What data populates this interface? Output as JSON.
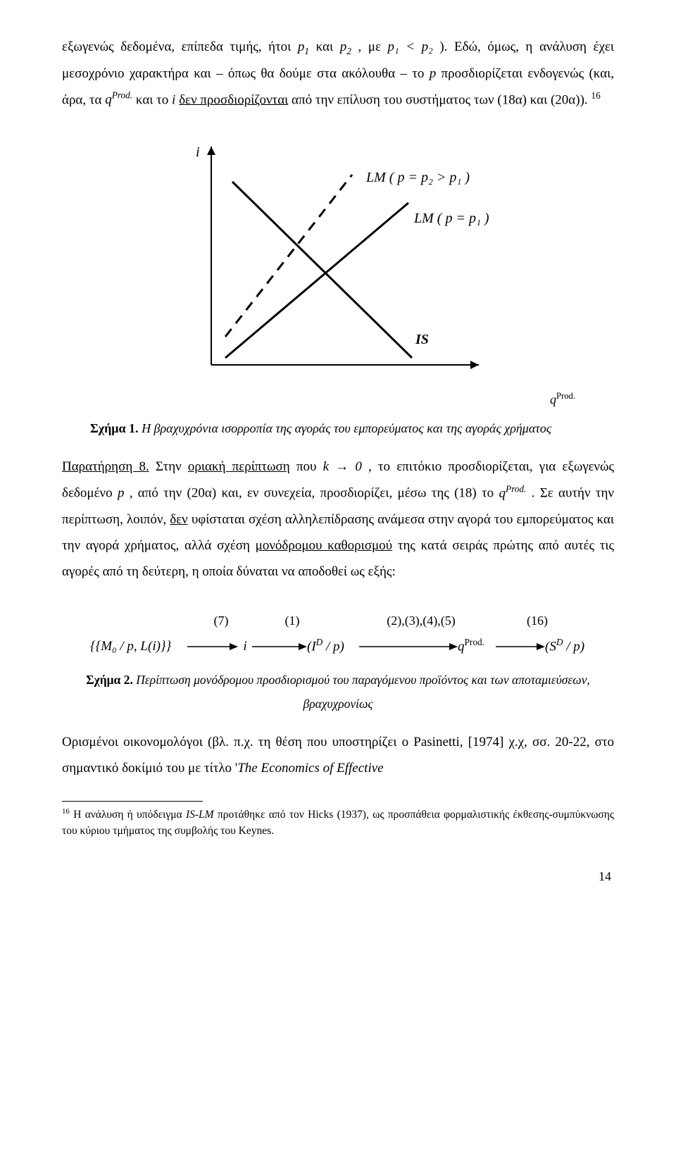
{
  "para1": {
    "t1": "εξωγενώς δεδομένα, επίπεδα τιμής, ήτοι ",
    "p1": "p",
    "p1sub": "1",
    "t2": " και ",
    "p2": "p",
    "p2sub": "2",
    "t3": ", με ",
    "rel": "p₁ < p₂",
    "t4": ").  Εδώ, όμως, η ανάλυση έχει μεσοχρόνιο χαρακτήρα και – όπως θα δούμε στα ακόλουθα –  το ",
    "pvar": "p",
    "t5": " προσδιορίζεται ενδογενώς (και, άρα, τα ",
    "qprod": "q",
    "qprodSup": "Prod.",
    "t6": " και το ",
    "ivar": "i",
    "t7": " δεν προσδιορίζονται",
    "t8": " από την επίλυση του συστήματος των (18α) και (20α)).",
    "fnref": "16"
  },
  "chart": {
    "bg": "#ffffff",
    "axis_color": "#000000",
    "line_color": "#000000",
    "dash_pattern": "14,10",
    "solid_width": 3,
    "dash_width": 3,
    "arrow_head": 10,
    "yaxis_label": "i",
    "lm2_label": "LM ( p = p₂ > p₁ )",
    "lm1_label": "LM ( p = p₁ )",
    "is_label": "IS",
    "xaxis_label_q": "q",
    "xaxis_label_sup": "Prod.",
    "viewbox_w": 520,
    "viewbox_h": 380,
    "font_size": 20,
    "font_style": "italic"
  },
  "fig1": {
    "label": "Σχήμα 1.",
    "text": " Η βραχυχρόνια ισορροπία της αγοράς του εμπορεύματος και της αγοράς χρήματος"
  },
  "para2": {
    "head": "Παρατήρηση 8.",
    "t1": " Στην ",
    "u1": "οριακή περίπτωση",
    "t2": " που ",
    "kto0": "k → 0",
    "t3": ", το επιτόκιο προσδιορίζεται, για εξωγενώς δεδομένο ",
    "p": "p",
    "t4": ", από την (20α) και, εν συνεχεία, προσδιορίζει, μέσω της (18) το ",
    "q": "q",
    "qsup": "Prod.",
    "t5": ". Σε αυτήν την περίπτωση, λοιπόν, ",
    "u2": "δεν",
    "t6": " υφίσταται σχέση αλληλεπίδρασης ανάμεσα στην αγορά του εμπορεύματος και την αγορά χρήματος, αλλά σχέση ",
    "u3": "μονόδρομου καθορισμού",
    "t7": " της κατά σειράς πρώτης από αυτές τις αγορές από τη δεύτερη, η οποία δύναται να αποδοθεί ως εξής:"
  },
  "flow": {
    "l1": "(7)",
    "l2": "(1)",
    "l3": "(2),(3),(4),(5)",
    "l4": "(16)",
    "n1": "{M₀ / p, L(i)}",
    "n2": "i",
    "n3": "(I",
    "n3sup": "D",
    "n3b": " / p)",
    "n4q": "q",
    "n4sup": "Prod.",
    "n5a": "(S",
    "n5sup": "D",
    "n5b": " / p)",
    "arrow_color": "#000000"
  },
  "fig2": {
    "label": "Σχήμα 2.",
    "text": " Περίπτωση μονόδρομου προσδιορισμού του παραγόμενου προϊόντος και των αποταμιεύσεων, βραχυχρονίως"
  },
  "para3": {
    "t1": "Ορισμένοι οικονομολόγοι (βλ. π.χ. τη θέση που υποστηρίζει ο Pasinetti, [1974] χ.χ, σσ. 20-22, στο σημαντικό δοκίμιό του με τίτλο '",
    "title": "The Economics of Effective"
  },
  "footnote": {
    "num": "16",
    "t1": " Η ανάλυση ή υπόδειγμα ",
    "islm": "IS-LM",
    "t2": " προτάθηκε από τον Hicks (1937), ως προσπάθεια φορμαλιστικής έκθεσης-συμπύκνωσης του κύριου τμήματος της συμβολής του Keynes."
  },
  "page_number": "14"
}
